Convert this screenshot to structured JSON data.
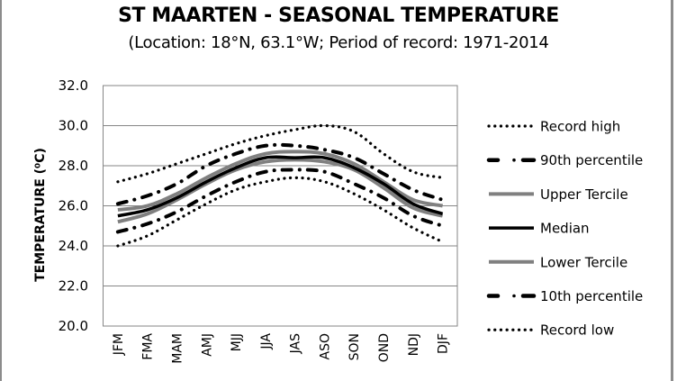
{
  "chart_data": {
    "type": "line",
    "title": "ST MAARTEN - SEASONAL TEMPERATURE",
    "subtitle": "(Location: 18°N, 63.1°W; Period of record: 1971-2014",
    "xlabel": "",
    "ylabel": "TEMPERATURE (⁰C)",
    "ylim": [
      20.0,
      32.0
    ],
    "yticks": [
      "20.0",
      "22.0",
      "24.0",
      "26.0",
      "28.0",
      "30.0",
      "32.0"
    ],
    "grid": true,
    "legend_position": "right",
    "categories": [
      "JFM",
      "FMA",
      "MAM",
      "AMJ",
      "MJJ",
      "JJA",
      "JAS",
      "ASO",
      "SON",
      "OND",
      "NDJ",
      "DJF"
    ],
    "series": [
      {
        "name": "Record high",
        "style": "dotted",
        "color": "#000000",
        "values": [
          27.2,
          27.6,
          28.1,
          28.6,
          29.1,
          29.5,
          29.8,
          30.0,
          29.7,
          28.6,
          27.7,
          27.4
        ]
      },
      {
        "name": "90th percentile",
        "style": "dash-dot",
        "color": "#000000",
        "values": [
          26.1,
          26.5,
          27.1,
          28.0,
          28.6,
          29.0,
          29.0,
          28.8,
          28.4,
          27.6,
          26.8,
          26.3
        ]
      },
      {
        "name": "Upper Tercile",
        "style": "solid",
        "color": "#808080",
        "values": [
          25.8,
          26.0,
          26.6,
          27.4,
          28.1,
          28.6,
          28.7,
          28.6,
          28.1,
          27.2,
          26.3,
          26.0
        ]
      },
      {
        "name": "Median",
        "style": "solid",
        "color": "#000000",
        "values": [
          25.5,
          25.8,
          26.4,
          27.2,
          27.9,
          28.4,
          28.4,
          28.4,
          27.9,
          27.1,
          26.1,
          25.6
        ]
      },
      {
        "name": "Lower Tercile",
        "style": "solid",
        "color": "#808080",
        "values": [
          25.2,
          25.6,
          26.3,
          27.1,
          27.8,
          28.2,
          28.3,
          28.2,
          27.8,
          26.9,
          25.9,
          25.5
        ]
      },
      {
        "name": "10th percentile",
        "style": "dash-dot",
        "color": "#000000",
        "values": [
          24.7,
          25.1,
          25.7,
          26.5,
          27.2,
          27.7,
          27.8,
          27.7,
          27.1,
          26.4,
          25.5,
          25.0
        ]
      },
      {
        "name": "Record low",
        "style": "dotted",
        "color": "#000000",
        "values": [
          24.0,
          24.5,
          25.3,
          26.1,
          26.8,
          27.2,
          27.4,
          27.2,
          26.6,
          25.8,
          24.9,
          24.2
        ]
      }
    ]
  },
  "colors": {
    "gridline": "#868686",
    "border": "#8c8c8c",
    "tercile": "#808080",
    "ink": "#000000"
  }
}
